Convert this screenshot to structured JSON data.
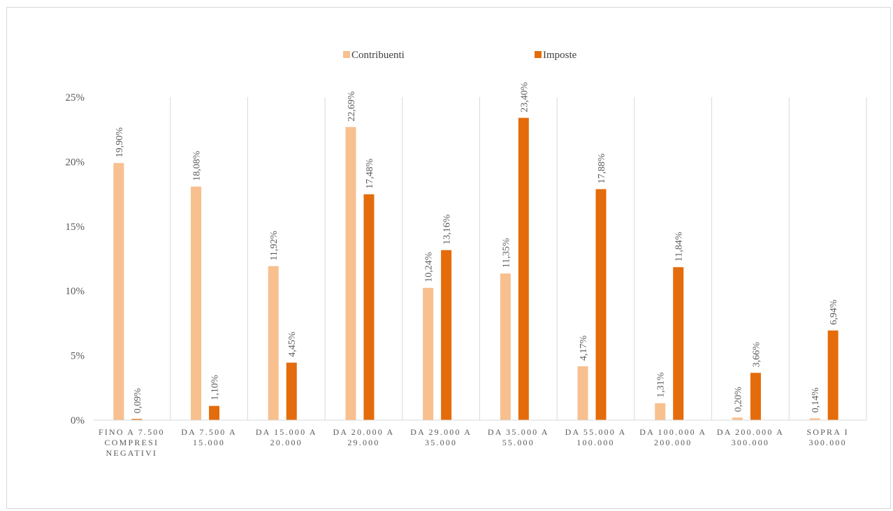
{
  "chart_data": {
    "type": "bar",
    "title": "",
    "xlabel": "",
    "ylabel": "",
    "ylim": [
      0,
      25
    ],
    "yticks": [
      "0%",
      "5%",
      "10%",
      "15%",
      "20%",
      "25%"
    ],
    "grid": "vertical separators between categories",
    "legend_position": "top",
    "categories": [
      [
        "FINO A 7.500",
        "COMPRESI",
        "NEGATIVI"
      ],
      [
        "DA 7.500 A",
        "15.000"
      ],
      [
        "DA 15.000 A",
        "20.000"
      ],
      [
        "DA 20.000 A",
        "29.000"
      ],
      [
        "DA 29.000 A",
        "35.000"
      ],
      [
        "DA 35.000 A",
        "55.000"
      ],
      [
        "DA 55.000 A",
        "100.000"
      ],
      [
        "DA 100.000 A",
        "200.000"
      ],
      [
        "DA 200.000 A",
        "300.000"
      ],
      [
        "SOPRA I",
        "300.000"
      ]
    ],
    "series": [
      {
        "name": "Contribuenti",
        "color": "#F8BF8F",
        "values": [
          19.9,
          18.08,
          11.92,
          22.69,
          10.24,
          11.35,
          4.17,
          1.31,
          0.2,
          0.14
        ],
        "labels": [
          "19,90%",
          "18,08%",
          "11,92%",
          "22,69%",
          "10,24%",
          "11,35%",
          "4,17%",
          "1,31%",
          "0,20%",
          "0,14%"
        ]
      },
      {
        "name": "Imposte",
        "color": "#E46C0A",
        "values": [
          0.09,
          1.1,
          4.45,
          17.48,
          13.16,
          23.4,
          17.88,
          11.84,
          3.66,
          6.94
        ],
        "labels": [
          "0,09%",
          "1,10%",
          "4,45%",
          "17,48%",
          "13,16%",
          "23,40%",
          "17,88%",
          "11,84%",
          "3,66%",
          "6,94%"
        ]
      }
    ]
  }
}
